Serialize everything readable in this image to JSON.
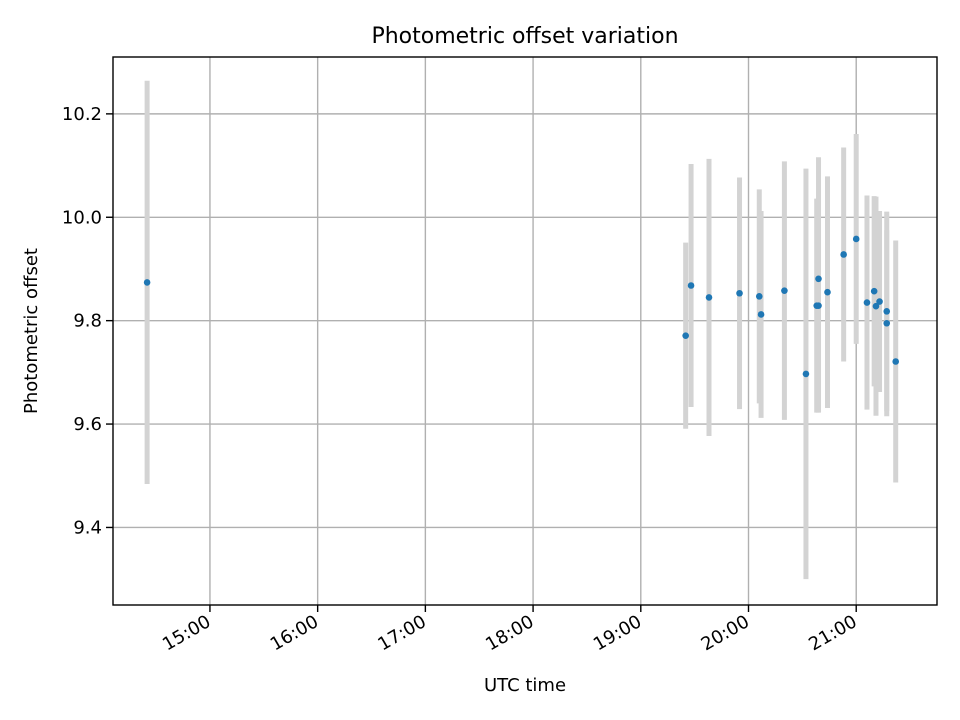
{
  "chart_data": {
    "type": "scatter",
    "title": "Photometric offset variation",
    "xlabel": "UTC time",
    "ylabel": "Photometric offset",
    "x_ticks": [
      "15:00",
      "16:00",
      "17:00",
      "18:00",
      "19:00",
      "20:00",
      "21:00"
    ],
    "y_ticks": [
      "9.4",
      "9.6",
      "9.8",
      "10.0",
      "10.2"
    ],
    "xlim": [
      "14:06",
      "21:45"
    ],
    "ylim": [
      9.25,
      10.31
    ],
    "grid": true,
    "colors": {
      "marker": "#1f77b4",
      "errorbar": "#d3d3d3"
    },
    "points": [
      {
        "time": "14:25",
        "y": 9.874,
        "yerr": 0.39
      },
      {
        "time": "19:25",
        "y": 9.771,
        "yerr": 0.18
      },
      {
        "time": "19:28",
        "y": 9.868,
        "yerr": 0.235
      },
      {
        "time": "19:38",
        "y": 9.845,
        "yerr": 0.268
      },
      {
        "time": "19:55",
        "y": 9.853,
        "yerr": 0.224
      },
      {
        "time": "20:06",
        "y": 9.847,
        "yerr": 0.207
      },
      {
        "time": "20:07",
        "y": 9.812,
        "yerr": 0.2
      },
      {
        "time": "20:20",
        "y": 9.858,
        "yerr": 0.25
      },
      {
        "time": "20:32",
        "y": 9.697,
        "yerr": 0.397
      },
      {
        "time": "20:38",
        "y": 9.829,
        "yerr": 0.207
      },
      {
        "time": "20:39",
        "y": 9.829,
        "yerr": 0.207
      },
      {
        "time": "20:39",
        "y": 9.881,
        "yerr": 0.235
      },
      {
        "time": "20:44",
        "y": 9.855,
        "yerr": 0.224
      },
      {
        "time": "20:53",
        "y": 9.928,
        "yerr": 0.207
      },
      {
        "time": "21:00",
        "y": 9.958,
        "yerr": 0.203
      },
      {
        "time": "21:06",
        "y": 9.835,
        "yerr": 0.207
      },
      {
        "time": "21:10",
        "y": 9.857,
        "yerr": 0.184
      },
      {
        "time": "21:11",
        "y": 9.828,
        "yerr": 0.212
      },
      {
        "time": "21:13",
        "y": 9.837,
        "yerr": 0.175
      },
      {
        "time": "21:17",
        "y": 9.818,
        "yerr": 0.193
      },
      {
        "time": "21:17",
        "y": 9.795,
        "yerr": 0.18
      },
      {
        "time": "21:22",
        "y": 9.721,
        "yerr": 0.234
      }
    ]
  }
}
